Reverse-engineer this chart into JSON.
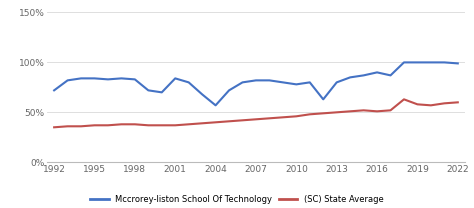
{
  "school_years": [
    1992,
    1993,
    1994,
    1995,
    1996,
    1997,
    1998,
    1999,
    2000,
    2001,
    2002,
    2003,
    2004,
    2005,
    2006,
    2007,
    2008,
    2009,
    2010,
    2011,
    2012,
    2013,
    2014,
    2015,
    2016,
    2017,
    2018,
    2019,
    2020,
    2021,
    2022
  ],
  "school_values": [
    0.72,
    0.82,
    0.84,
    0.84,
    0.83,
    0.84,
    0.83,
    0.72,
    0.7,
    0.84,
    0.8,
    0.68,
    0.57,
    0.72,
    0.8,
    0.82,
    0.82,
    0.8,
    0.78,
    0.8,
    0.63,
    0.8,
    0.85,
    0.87,
    0.9,
    0.87,
    1.0,
    1.0,
    1.0,
    1.0,
    0.99
  ],
  "state_values": [
    0.35,
    0.36,
    0.36,
    0.37,
    0.37,
    0.38,
    0.38,
    0.37,
    0.37,
    0.37,
    0.38,
    0.39,
    0.4,
    0.41,
    0.42,
    0.43,
    0.44,
    0.45,
    0.46,
    0.48,
    0.49,
    0.5,
    0.51,
    0.52,
    0.51,
    0.52,
    0.63,
    0.58,
    0.57,
    0.59,
    0.6
  ],
  "school_color": "#4472c4",
  "state_color": "#c0504d",
  "school_label": "Mccrorey-liston School Of Technology",
  "state_label": "(SC) State Average",
  "ylim": [
    0,
    1.5
  ],
  "yticks": [
    0.0,
    0.5,
    1.0,
    1.5
  ],
  "ytick_labels": [
    "0%",
    "50%",
    "100%",
    "150%"
  ],
  "xticks": [
    1992,
    1995,
    1998,
    2001,
    2004,
    2007,
    2010,
    2013,
    2016,
    2019,
    2022
  ],
  "grid_color": "#d9d9d9",
  "background_color": "#ffffff",
  "line_width": 1.5
}
